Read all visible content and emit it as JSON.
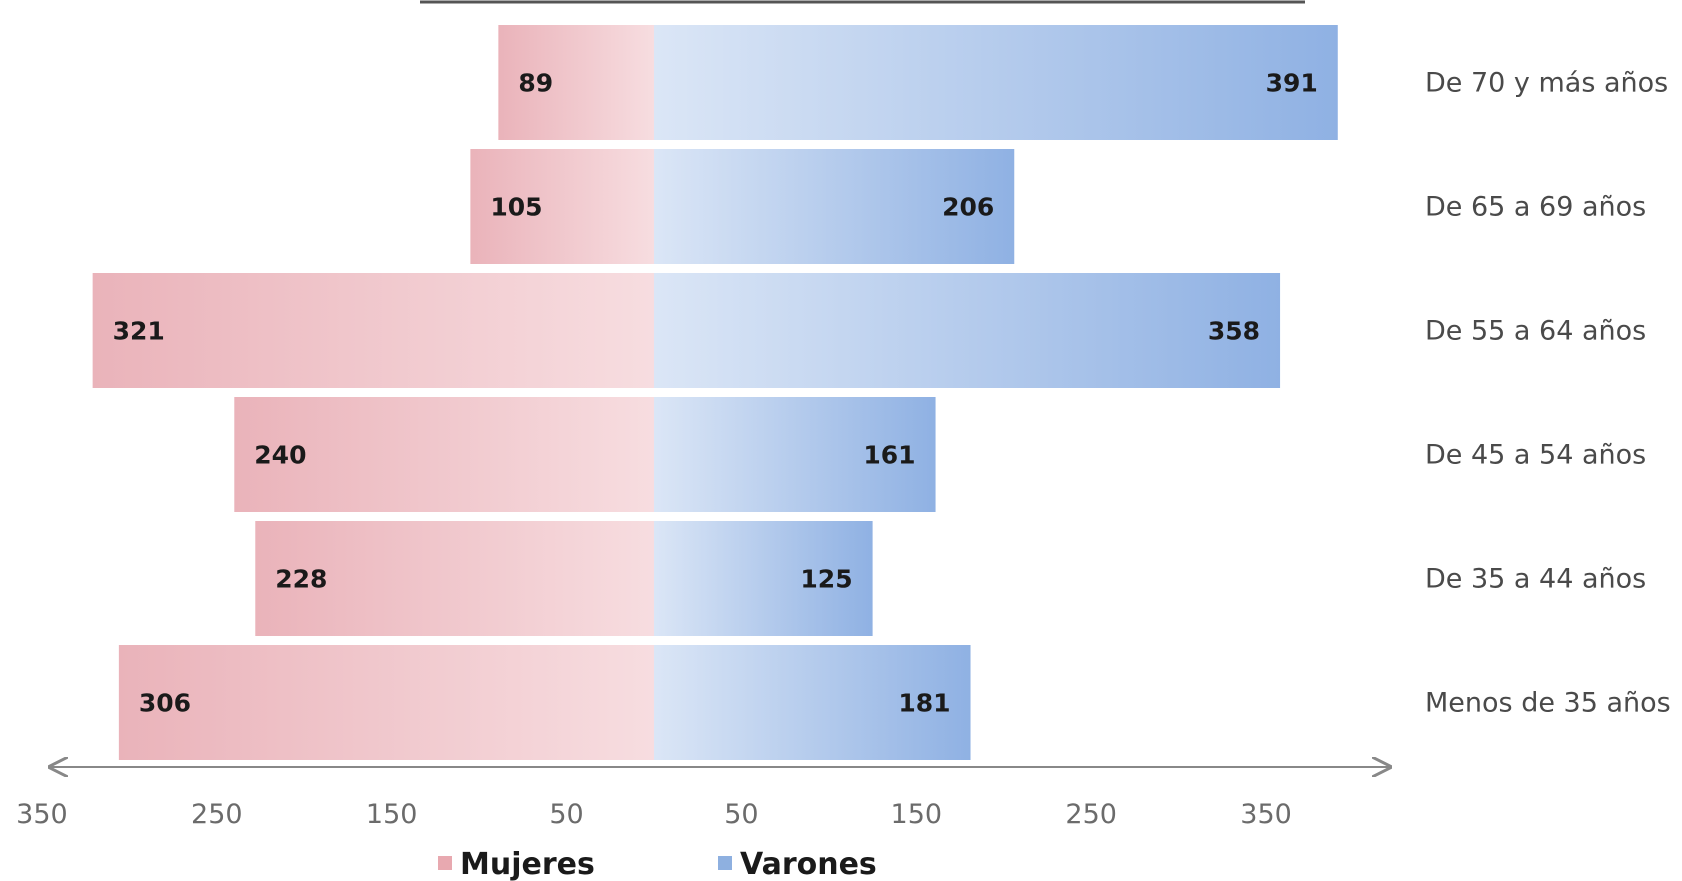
{
  "chart_data": {
    "type": "bar",
    "orientation": "horizontal",
    "layout": "population-pyramid",
    "categories": [
      "De 70 y más años",
      "De 65 a 69 años",
      "De 55 a 64 años",
      "De 45 a 54 años",
      "De 35 a 44 años",
      "Menos de 35 años"
    ],
    "series": [
      {
        "name": "Mujeres",
        "values": [
          89,
          105,
          321,
          240,
          228,
          306
        ],
        "color": "#e8a9b0"
      },
      {
        "name": "Varones",
        "values": [
          391,
          206,
          358,
          161,
          125,
          181
        ],
        "color": "#8eb0e0"
      }
    ],
    "xlim": [
      -350,
      350
    ],
    "x_ticks": [
      {
        "value": -350,
        "label": "350"
      },
      {
        "value": -250,
        "label": "250"
      },
      {
        "value": -150,
        "label": "150"
      },
      {
        "value": -50,
        "label": "50"
      },
      {
        "value": 50,
        "label": "50"
      },
      {
        "value": 150,
        "label": "150"
      },
      {
        "value": 250,
        "label": "250"
      },
      {
        "value": 350,
        "label": "350"
      }
    ],
    "legend_position": "bottom",
    "grid": false
  }
}
